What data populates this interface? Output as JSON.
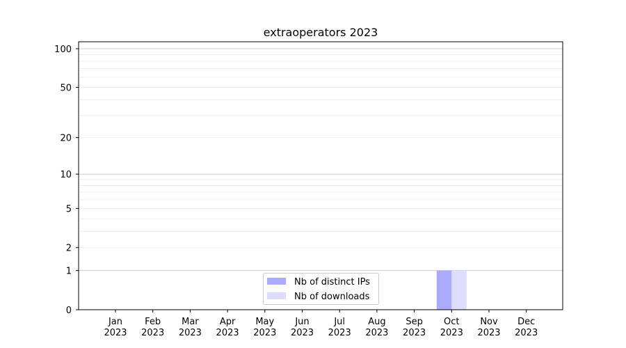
{
  "chart_data": {
    "type": "bar",
    "title": "extraoperators 2023",
    "xlabel": "",
    "ylabel": "",
    "yscale": "log(1+y)",
    "ylim": [
      0,
      100
    ],
    "y_ticks": [
      0,
      1,
      2,
      5,
      10,
      20,
      50,
      100
    ],
    "y_tick_labels": [
      "0",
      "1",
      "2",
      "5",
      "10",
      "20",
      "50",
      "100"
    ],
    "grid": true,
    "legend_position": "lower center",
    "categories": [
      "Jan\n2023",
      "Feb\n2023",
      "Mar\n2023",
      "Apr\n2023",
      "May\n2023",
      "Jun\n2023",
      "Jul\n2023",
      "Aug\n2023",
      "Sep\n2023",
      "Oct\n2023",
      "Nov\n2023",
      "Dec\n2023"
    ],
    "x_tick_labels": [
      {
        "month": "Jan",
        "year": "2023"
      },
      {
        "month": "Feb",
        "year": "2023"
      },
      {
        "month": "Mar",
        "year": "2023"
      },
      {
        "month": "Apr",
        "year": "2023"
      },
      {
        "month": "May",
        "year": "2023"
      },
      {
        "month": "Jun",
        "year": "2023"
      },
      {
        "month": "Jul",
        "year": "2023"
      },
      {
        "month": "Aug",
        "year": "2023"
      },
      {
        "month": "Sep",
        "year": "2023"
      },
      {
        "month": "Oct",
        "year": "2023"
      },
      {
        "month": "Nov",
        "year": "2023"
      },
      {
        "month": "Dec",
        "year": "2023"
      }
    ],
    "series": [
      {
        "name": "Nb of distinct IPs",
        "color": "#aaaaff",
        "values": [
          0,
          0,
          0,
          0,
          0,
          0,
          0,
          0,
          0,
          1,
          0,
          0
        ]
      },
      {
        "name": "Nb of downloads",
        "color": "#ddddff",
        "values": [
          0,
          0,
          0,
          0,
          0,
          0,
          0,
          0,
          0,
          1,
          0,
          0
        ]
      }
    ]
  }
}
